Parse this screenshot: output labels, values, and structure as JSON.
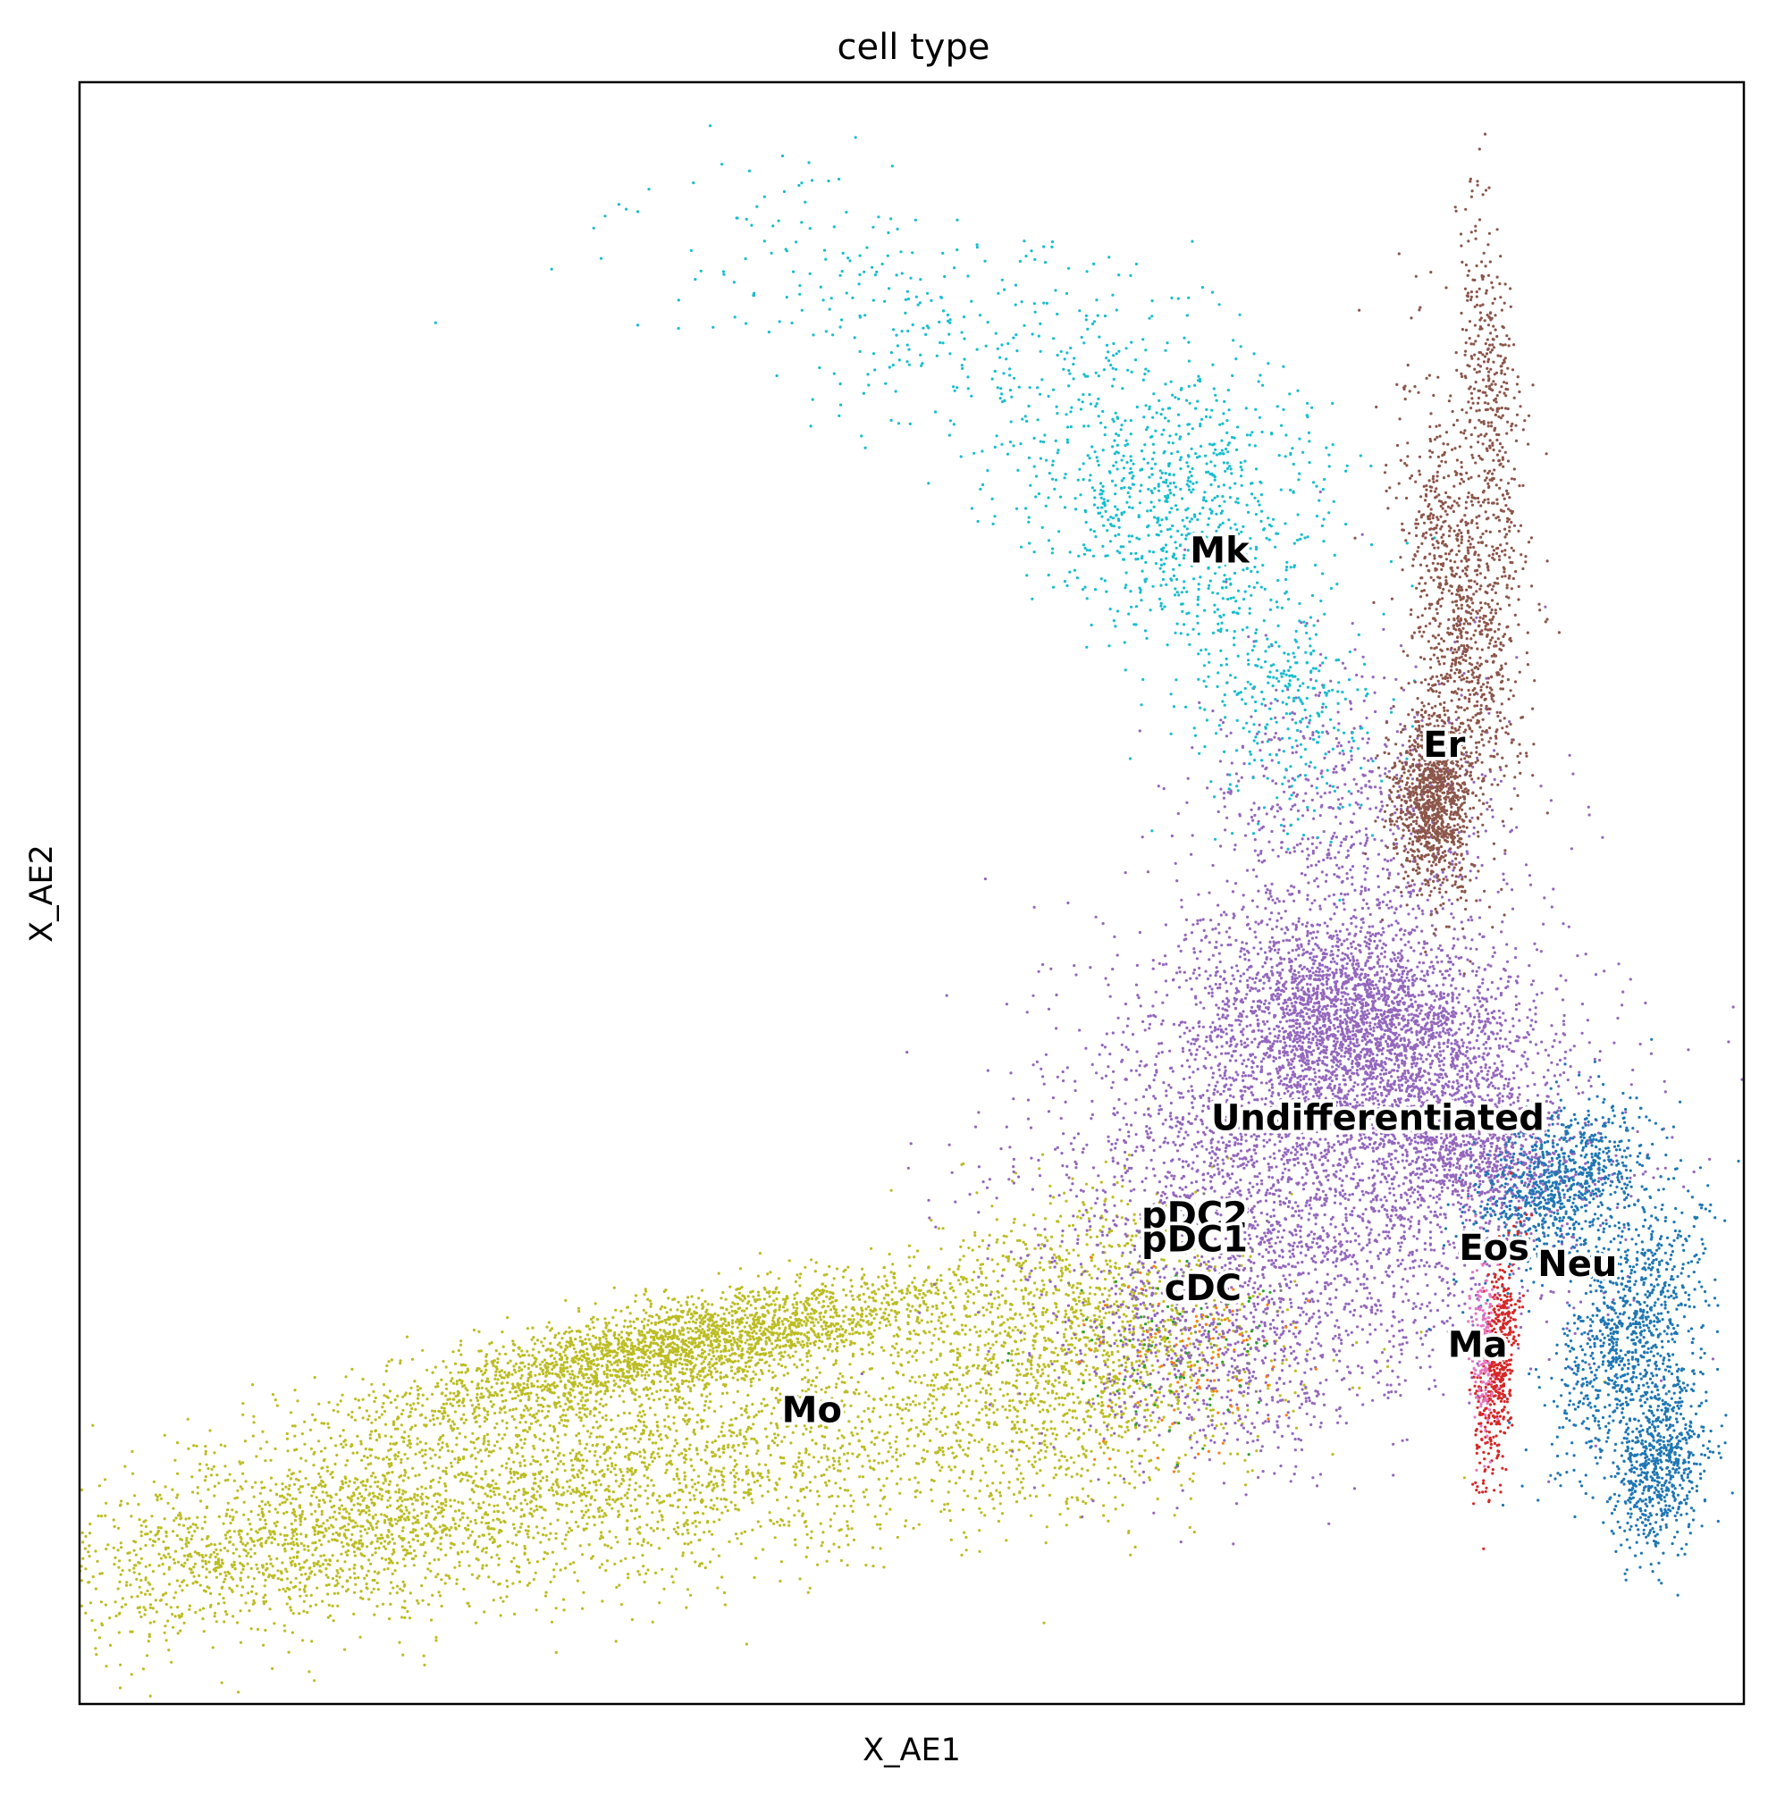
{
  "chart_data": {
    "type": "scatter",
    "title": "cell type",
    "xlabel": "X_AE1",
    "ylabel": "X_AE2",
    "xlim": [
      0,
      100
    ],
    "ylim": [
      0,
      100
    ],
    "grid": false,
    "ticks": false,
    "series": [
      {
        "name": "Mo",
        "color": "#bcbd22",
        "label_at": [
          44,
          18
        ],
        "clusters": [
          {
            "cx": 36,
            "cy": 22,
            "sx": 9,
            "sy": 1.4,
            "n": 2600,
            "rot": 12
          },
          {
            "cx": 32,
            "cy": 14,
            "sx": 16,
            "sy": 3.4,
            "n": 3000,
            "rot": 10
          },
          {
            "cx": 12,
            "cy": 10,
            "sx": 8,
            "sy": 2.2,
            "n": 900,
            "rot": 16
          },
          {
            "cx": 60,
            "cy": 22,
            "sx": 5,
            "sy": 4.5,
            "n": 1300,
            "rot": 25
          }
        ]
      },
      {
        "name": "Undifferentiated",
        "color": "#9467bd",
        "label_at": [
          78,
          36
        ],
        "clusters": [
          {
            "cx": 77,
            "cy": 42,
            "sx": 5,
            "sy": 3,
            "n": 2500,
            "rot": -15
          },
          {
            "cx": 74,
            "cy": 33,
            "sx": 8,
            "sy": 6,
            "n": 3200,
            "rot": 0
          },
          {
            "cx": 76,
            "cy": 53,
            "sx": 5,
            "sy": 6,
            "n": 900,
            "rot": 0
          },
          {
            "cx": 84,
            "cy": 34,
            "sx": 3,
            "sy": 2,
            "n": 700,
            "rot": -20
          },
          {
            "cx": 69,
            "cy": 22,
            "sx": 5,
            "sy": 4,
            "n": 700,
            "rot": 0
          }
        ]
      },
      {
        "name": "Mk",
        "color": "#17becf",
        "label_at": [
          68.5,
          71
        ],
        "clusters": [
          {
            "cx": 66,
            "cy": 74,
            "sx": 4,
            "sy": 4.5,
            "n": 800,
            "rot": 40
          },
          {
            "cx": 53,
            "cy": 84,
            "sx": 10,
            "sy": 4,
            "n": 400,
            "rot": -20
          },
          {
            "cx": 72,
            "cy": 62,
            "sx": 3,
            "sy": 4,
            "n": 350,
            "rot": 30
          }
        ]
      },
      {
        "name": "Er",
        "color": "#8c564b",
        "label_at": [
          82,
          59
        ],
        "clusters": [
          {
            "cx": 81.5,
            "cy": 56,
            "sx": 1.2,
            "sy": 3,
            "n": 1200,
            "rot": 0
          },
          {
            "cx": 83,
            "cy": 68,
            "sx": 1.5,
            "sy": 6,
            "n": 900,
            "rot": 8
          },
          {
            "cx": 85,
            "cy": 80,
            "sx": 0.8,
            "sy": 6,
            "n": 400,
            "rot": 4
          }
        ]
      },
      {
        "name": "Neu",
        "color": "#1f77b4",
        "label_at": [
          90,
          27
        ],
        "clusters": [
          {
            "cx": 89,
            "cy": 32,
            "sx": 2,
            "sy": 3,
            "n": 900,
            "rot": -45
          },
          {
            "cx": 93,
            "cy": 23,
            "sx": 1.8,
            "sy": 4,
            "n": 900,
            "rot": -20
          },
          {
            "cx": 95,
            "cy": 15,
            "sx": 1.3,
            "sy": 3,
            "n": 700,
            "rot": -8
          }
        ]
      },
      {
        "name": "Ma",
        "color": "#d62728",
        "label_at": [
          84,
          22
        ],
        "clusters": [
          {
            "cx": 85.2,
            "cy": 21,
            "sx": 0.5,
            "sy": 3.5,
            "n": 500,
            "rot": -5
          }
        ]
      },
      {
        "name": "Eos",
        "color": "#e377c2",
        "label_at": [
          85,
          28
        ],
        "clusters": [
          {
            "cx": 84.3,
            "cy": 22,
            "sx": 0.4,
            "sy": 3,
            "n": 180,
            "rot": 0
          }
        ]
      },
      {
        "name": "pDC2",
        "color": "#ff7f0e",
        "label_at": [
          67,
          30
        ],
        "clusters": [
          {
            "cx": 67,
            "cy": 21,
            "sx": 3,
            "sy": 3,
            "n": 100,
            "rot": 0
          }
        ]
      },
      {
        "name": "pDC1",
        "color": "#2ca02c",
        "label_at": [
          67,
          28.5
        ],
        "clusters": [
          {
            "cx": 66,
            "cy": 22,
            "sx": 3,
            "sy": 3,
            "n": 80,
            "rot": 0
          }
        ]
      },
      {
        "name": "cDC",
        "color": "#7f7f7f",
        "label_at": [
          67.5,
          25.5
        ],
        "clusters": [
          {
            "cx": 67,
            "cy": 24,
            "sx": 3,
            "sy": 3,
            "n": 60,
            "rot": 0
          }
        ]
      }
    ]
  }
}
